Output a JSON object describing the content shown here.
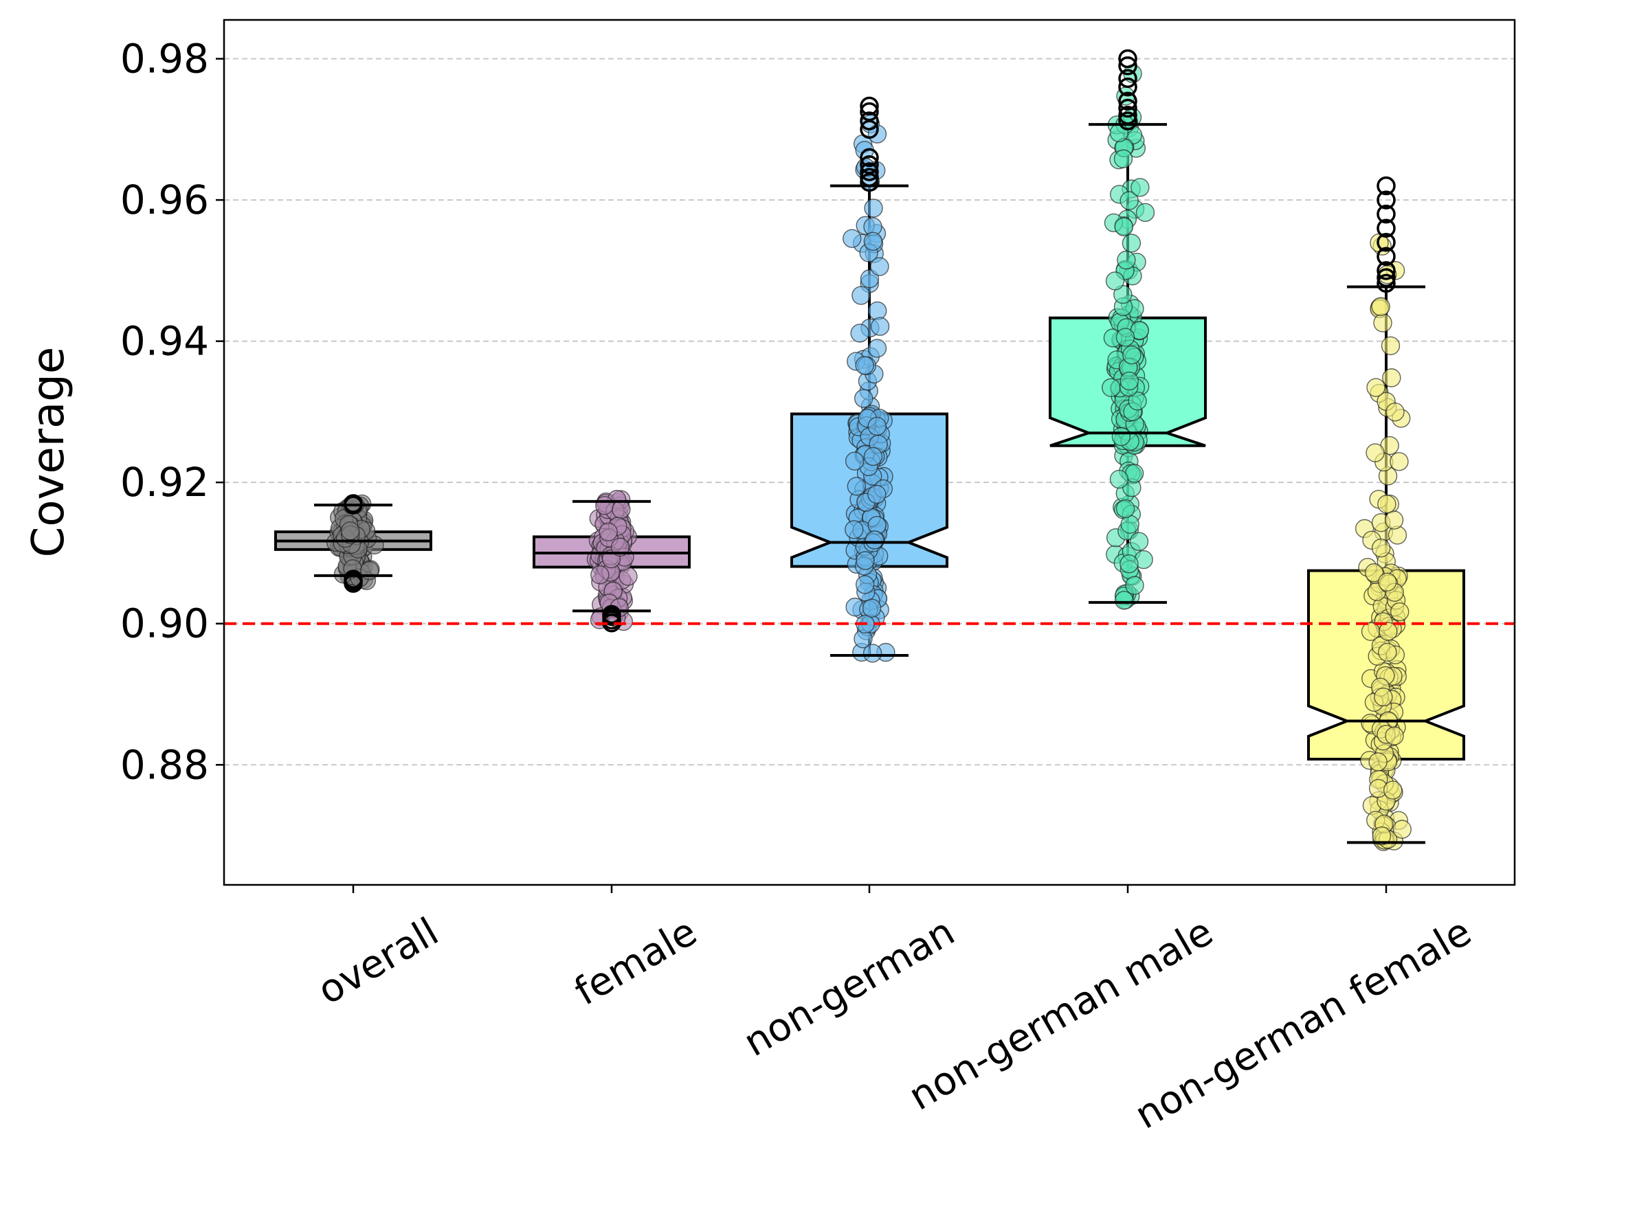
{
  "chart_data": {
    "type": "box",
    "title": "",
    "xlabel": "",
    "ylabel": "Coverage",
    "ylim": [
      0.863,
      0.9855
    ],
    "yticks": [
      "0.88",
      "0.90",
      "0.92",
      "0.94",
      "0.96",
      "0.98"
    ],
    "ytick_values": [
      0.88,
      0.9,
      0.92,
      0.94,
      0.96,
      0.98
    ],
    "grid": "horizontal dashed",
    "reference_line": {
      "value": 0.9,
      "color": "#ff0000",
      "style": "dashed"
    },
    "categories": [
      "overall",
      "female",
      "non-german",
      "non-german male",
      "non-german female"
    ],
    "boxes": [
      {
        "name": "overall",
        "color": "#a9a9a9",
        "whisker_low": 0.9068,
        "q1": 0.9105,
        "median": 0.9117,
        "q3": 0.913,
        "whisker_high": 0.9168,
        "points_range": [
          0.9057,
          0.917
        ],
        "outliers": [
          0.9057,
          0.906,
          0.9063,
          0.9168,
          0.917
        ]
      },
      {
        "name": "female",
        "color": "#c8a2c8",
        "whisker_low": 0.9018,
        "q1": 0.908,
        "median": 0.91,
        "q3": 0.9123,
        "whisker_high": 0.9173,
        "points_range": [
          0.9001,
          0.9176
        ],
        "outliers": [
          0.9001,
          0.9005,
          0.901,
          0.9013
        ]
      },
      {
        "name": "non-german",
        "color": "#87cefa",
        "whisker_low": 0.8955,
        "q1": 0.9081,
        "median": 0.9115,
        "q3": 0.9297,
        "whisker_high": 0.962,
        "points_range": [
          0.8952,
          0.9733
        ],
        "outliers": [
          0.9625,
          0.9632,
          0.964,
          0.965,
          0.966,
          0.97,
          0.9712,
          0.9725,
          0.9733
        ]
      },
      {
        "name": "non-german male",
        "color": "#7fffd4",
        "whisker_low": 0.903,
        "q1": 0.9252,
        "median": 0.927,
        "q3": 0.9433,
        "whisker_high": 0.9707,
        "points_range": [
          0.9027,
          0.98
        ],
        "outliers": [
          0.9712,
          0.972,
          0.973,
          0.974,
          0.976,
          0.9772,
          0.979,
          0.98
        ]
      },
      {
        "name": "non-german female",
        "color": "#ffff99",
        "whisker_low": 0.869,
        "q1": 0.8808,
        "median": 0.8862,
        "q3": 0.9075,
        "whisker_high": 0.9477,
        "points_range": [
          0.8688,
          0.962
        ],
        "outliers": [
          0.9482,
          0.949,
          0.95,
          0.952,
          0.954,
          0.956,
          0.958,
          0.96,
          0.962
        ]
      }
    ]
  }
}
